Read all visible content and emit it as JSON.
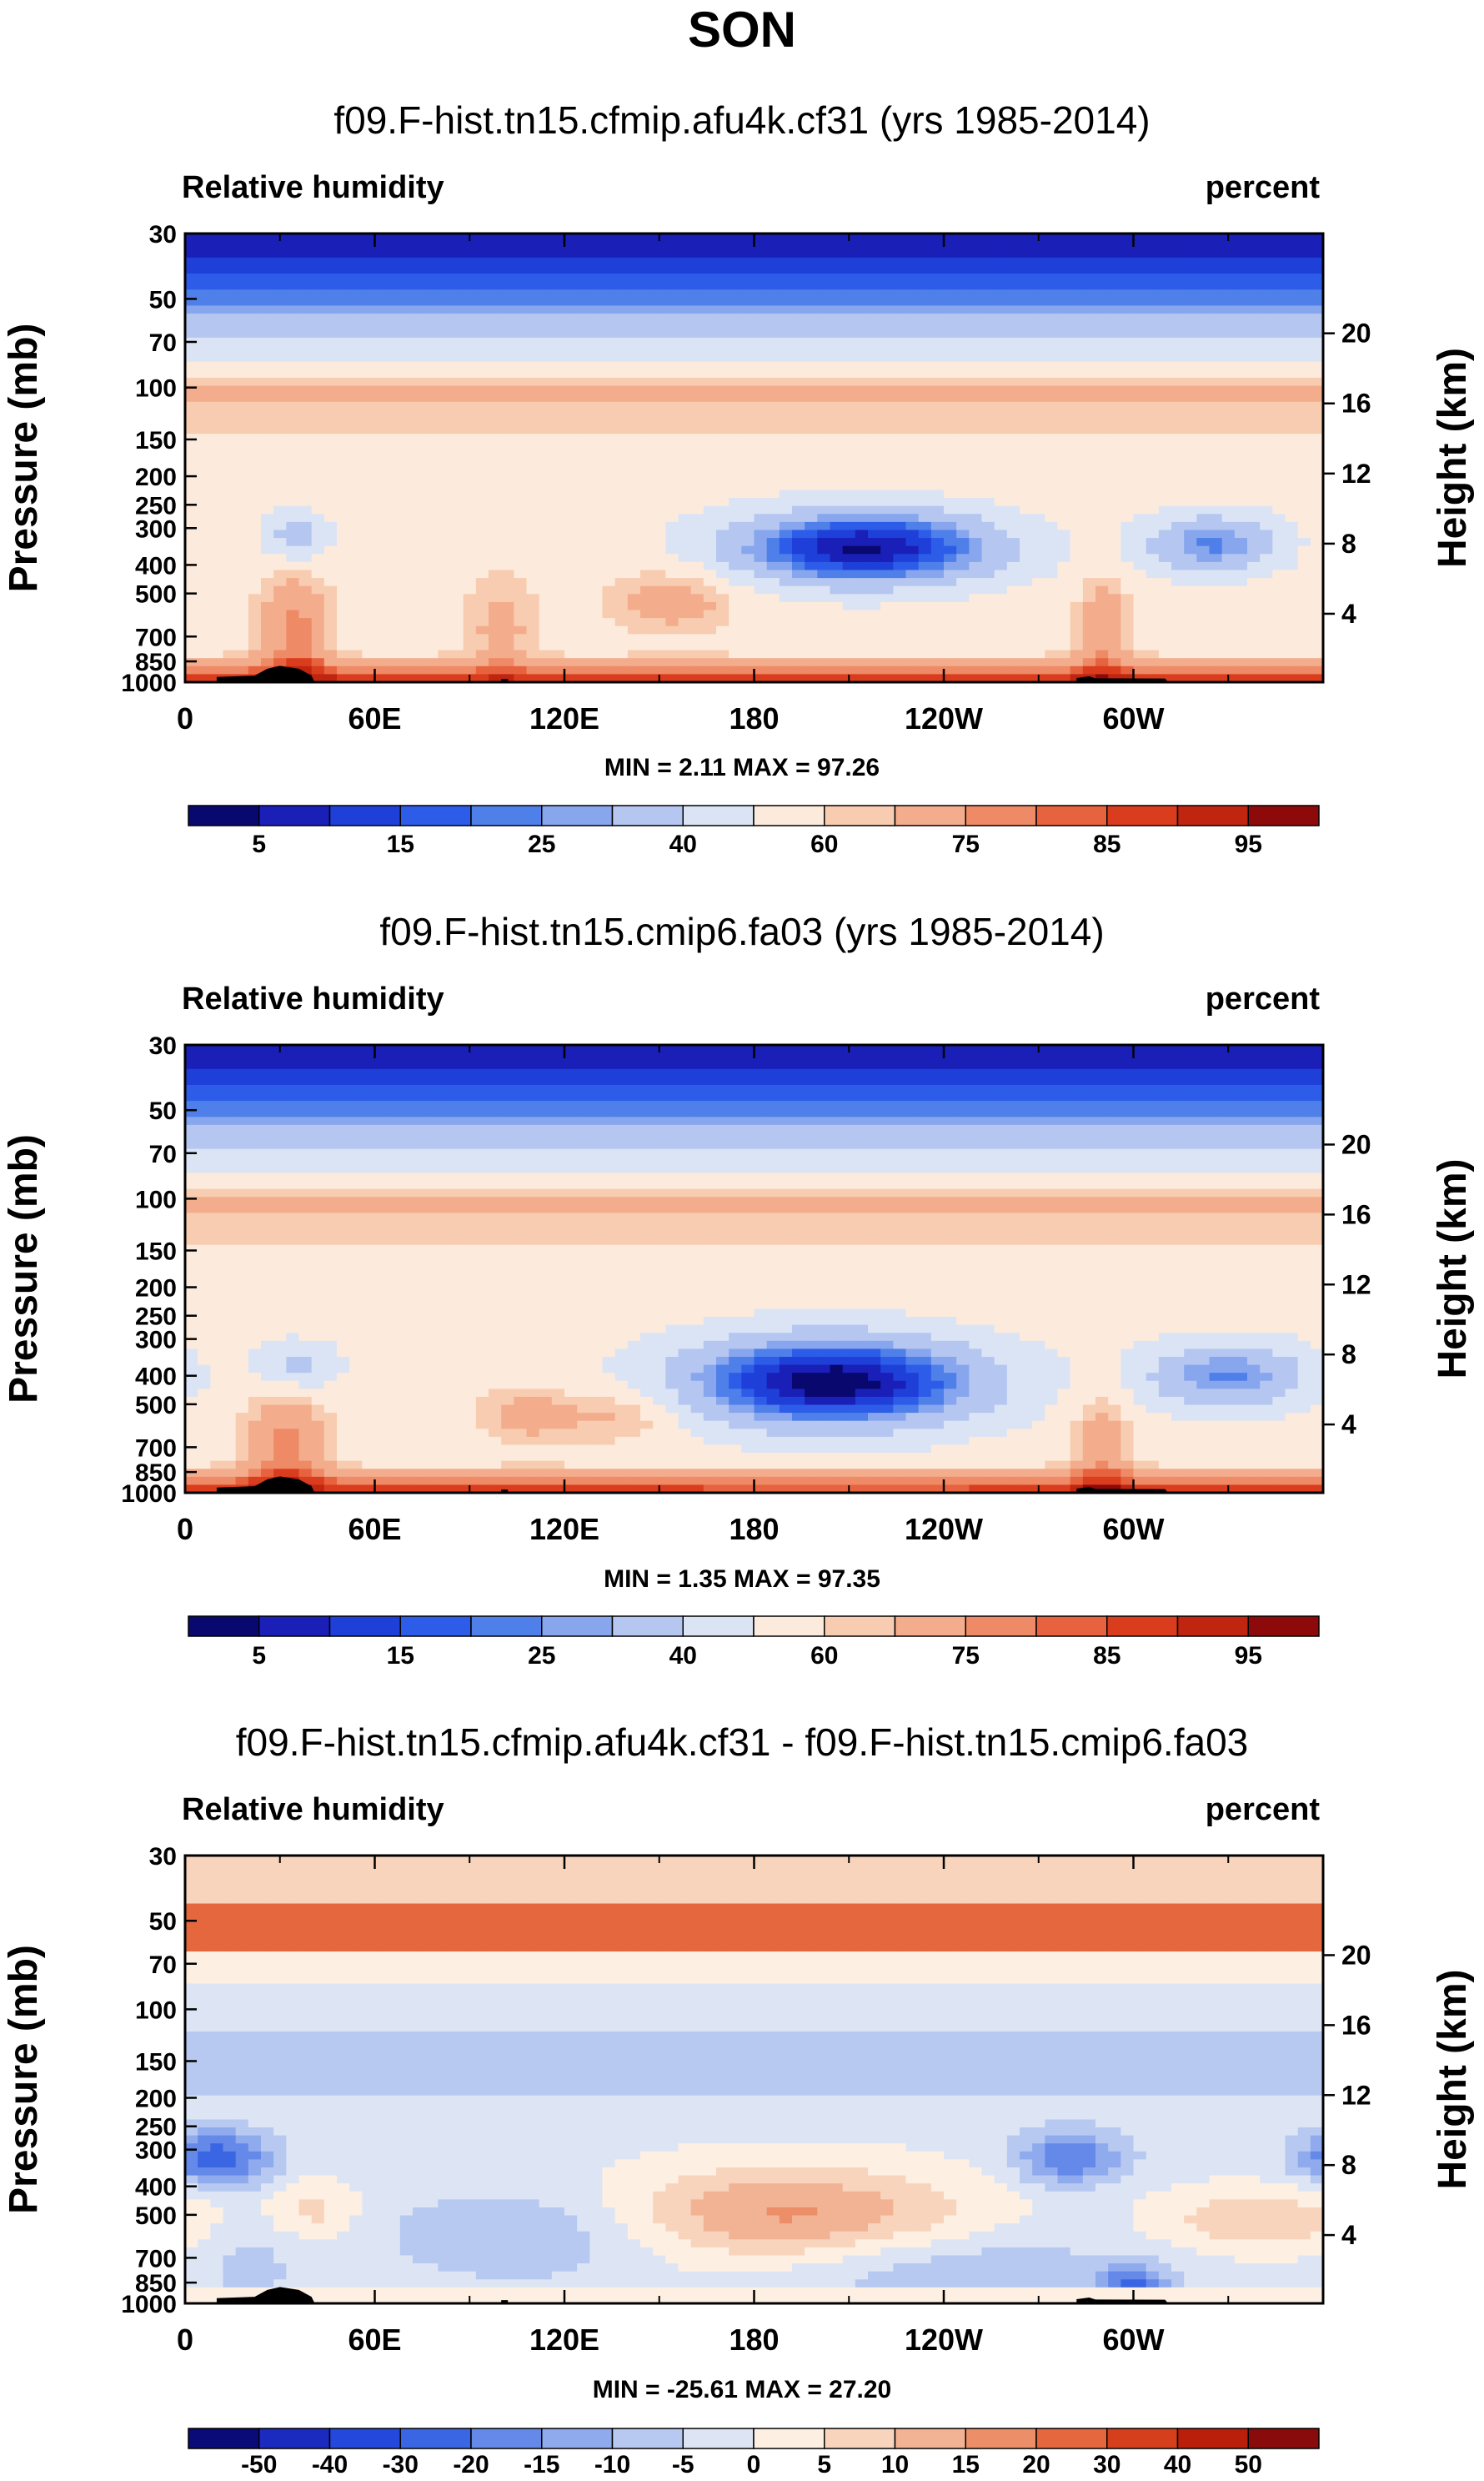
{
  "figure_title": "SON",
  "colors": {
    "ramp_rh": [
      "#08086e",
      "#1a1fb8",
      "#1f3fd9",
      "#2d5de8",
      "#4f7fe8",
      "#88a6ee",
      "#b5c7f0",
      "#dbe4f5",
      "#fcebdc",
      "#f8ccb0",
      "#f3ad8d",
      "#ee8a66",
      "#e7633f",
      "#da3d1e",
      "#c02510",
      "#8e0a0a"
    ],
    "ramp_diff": [
      "#0a0a78",
      "#1c2bbf",
      "#2448dc",
      "#3a66e4",
      "#6489e8",
      "#8fabee",
      "#b7c9f1",
      "#dde5f5",
      "#fdf0e3",
      "#f8d4bd",
      "#f2b394",
      "#ec8f68",
      "#e4673e",
      "#d53f1c",
      "#b91f0b",
      "#8a0b0b"
    ],
    "land": "#000000"
  },
  "chart_data": [
    {
      "type": "heatmap",
      "title": "f09.F-hist.tn15.cfmip.afu4k.cf31 (yrs 1985-2014)",
      "left_label": "Relative humidity",
      "right_label": "percent",
      "ylabel": "Pressure (mb)",
      "ylabel_right": "Height (km)",
      "x_ticks": [
        "0",
        "60E",
        "120E",
        "180",
        "120W",
        "60W"
      ],
      "y_ticks": [
        "30",
        "50",
        "70",
        "100",
        "150",
        "200",
        "250",
        "300",
        "400",
        "500",
        "700",
        "850",
        "1000"
      ],
      "height_ticks": [
        "20",
        "16",
        "12",
        "8",
        "4"
      ],
      "stats": "MIN =   2.11  MAX =  97.26",
      "colorbar_labels": [
        "5",
        "15",
        "25",
        "40",
        "60",
        "75",
        "85",
        "95"
      ],
      "ylim": [
        1000,
        30
      ],
      "xlim": [
        0,
        360
      ]
    },
    {
      "type": "heatmap",
      "title": "f09.F-hist.tn15.cmip6.fa03 (yrs 1985-2014)",
      "left_label": "Relative humidity",
      "right_label": "percent",
      "ylabel": "Pressure (mb)",
      "ylabel_right": "Height (km)",
      "x_ticks": [
        "0",
        "60E",
        "120E",
        "180",
        "120W",
        "60W"
      ],
      "y_ticks": [
        "30",
        "50",
        "70",
        "100",
        "150",
        "200",
        "250",
        "300",
        "400",
        "500",
        "700",
        "850",
        "1000"
      ],
      "height_ticks": [
        "20",
        "16",
        "12",
        "8",
        "4"
      ],
      "stats": "MIN =   1.35  MAX =  97.35",
      "colorbar_labels": [
        "5",
        "15",
        "25",
        "40",
        "60",
        "75",
        "85",
        "95"
      ],
      "ylim": [
        1000,
        30
      ],
      "xlim": [
        0,
        360
      ]
    },
    {
      "type": "heatmap",
      "title": "f09.F-hist.tn15.cfmip.afu4k.cf31 - f09.F-hist.tn15.cmip6.fa03",
      "left_label": "Relative humidity",
      "right_label": "percent",
      "ylabel": "Pressure (mb)",
      "ylabel_right": "Height (km)",
      "x_ticks": [
        "0",
        "60E",
        "120E",
        "180",
        "120W",
        "60W"
      ],
      "y_ticks": [
        "30",
        "50",
        "70",
        "100",
        "150",
        "200",
        "250",
        "300",
        "400",
        "500",
        "700",
        "850",
        "1000"
      ],
      "height_ticks": [
        "20",
        "16",
        "12",
        "8",
        "4"
      ],
      "stats": "MIN = -25.61  MAX =  27.20",
      "colorbar_labels": [
        "-50",
        "-40",
        "-30",
        "-20",
        "-15",
        "-10",
        "-5",
        "0",
        "5",
        "10",
        "15",
        "20",
        "30",
        "40",
        "50"
      ],
      "ylim": [
        1000,
        30
      ],
      "xlim": [
        0,
        360
      ]
    }
  ]
}
